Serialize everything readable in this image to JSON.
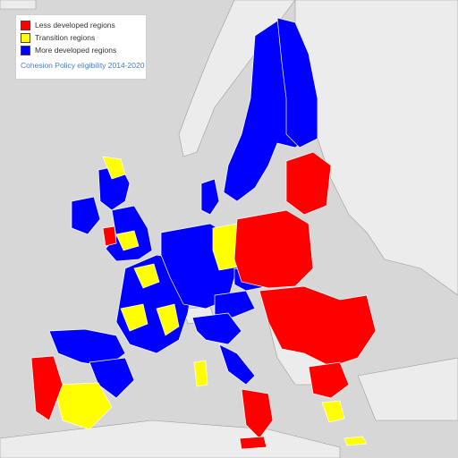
{
  "legend": {
    "items": [
      {
        "label": "Less developed regions",
        "color": "#ff0000"
      },
      {
        "label": "Transition regions",
        "color": "#ffff00"
      },
      {
        "label": "More developed regions",
        "color": "#0000ff"
      }
    ],
    "caption": "Cohesion Policy eligibility 2014-2020"
  },
  "colors": {
    "background": "#d7d7d7",
    "non_eu_land": "#ececec",
    "less_developed": "#ff0000",
    "transition": "#ffff00",
    "more_developed": "#0000ff",
    "borders": "#ffffff"
  }
}
